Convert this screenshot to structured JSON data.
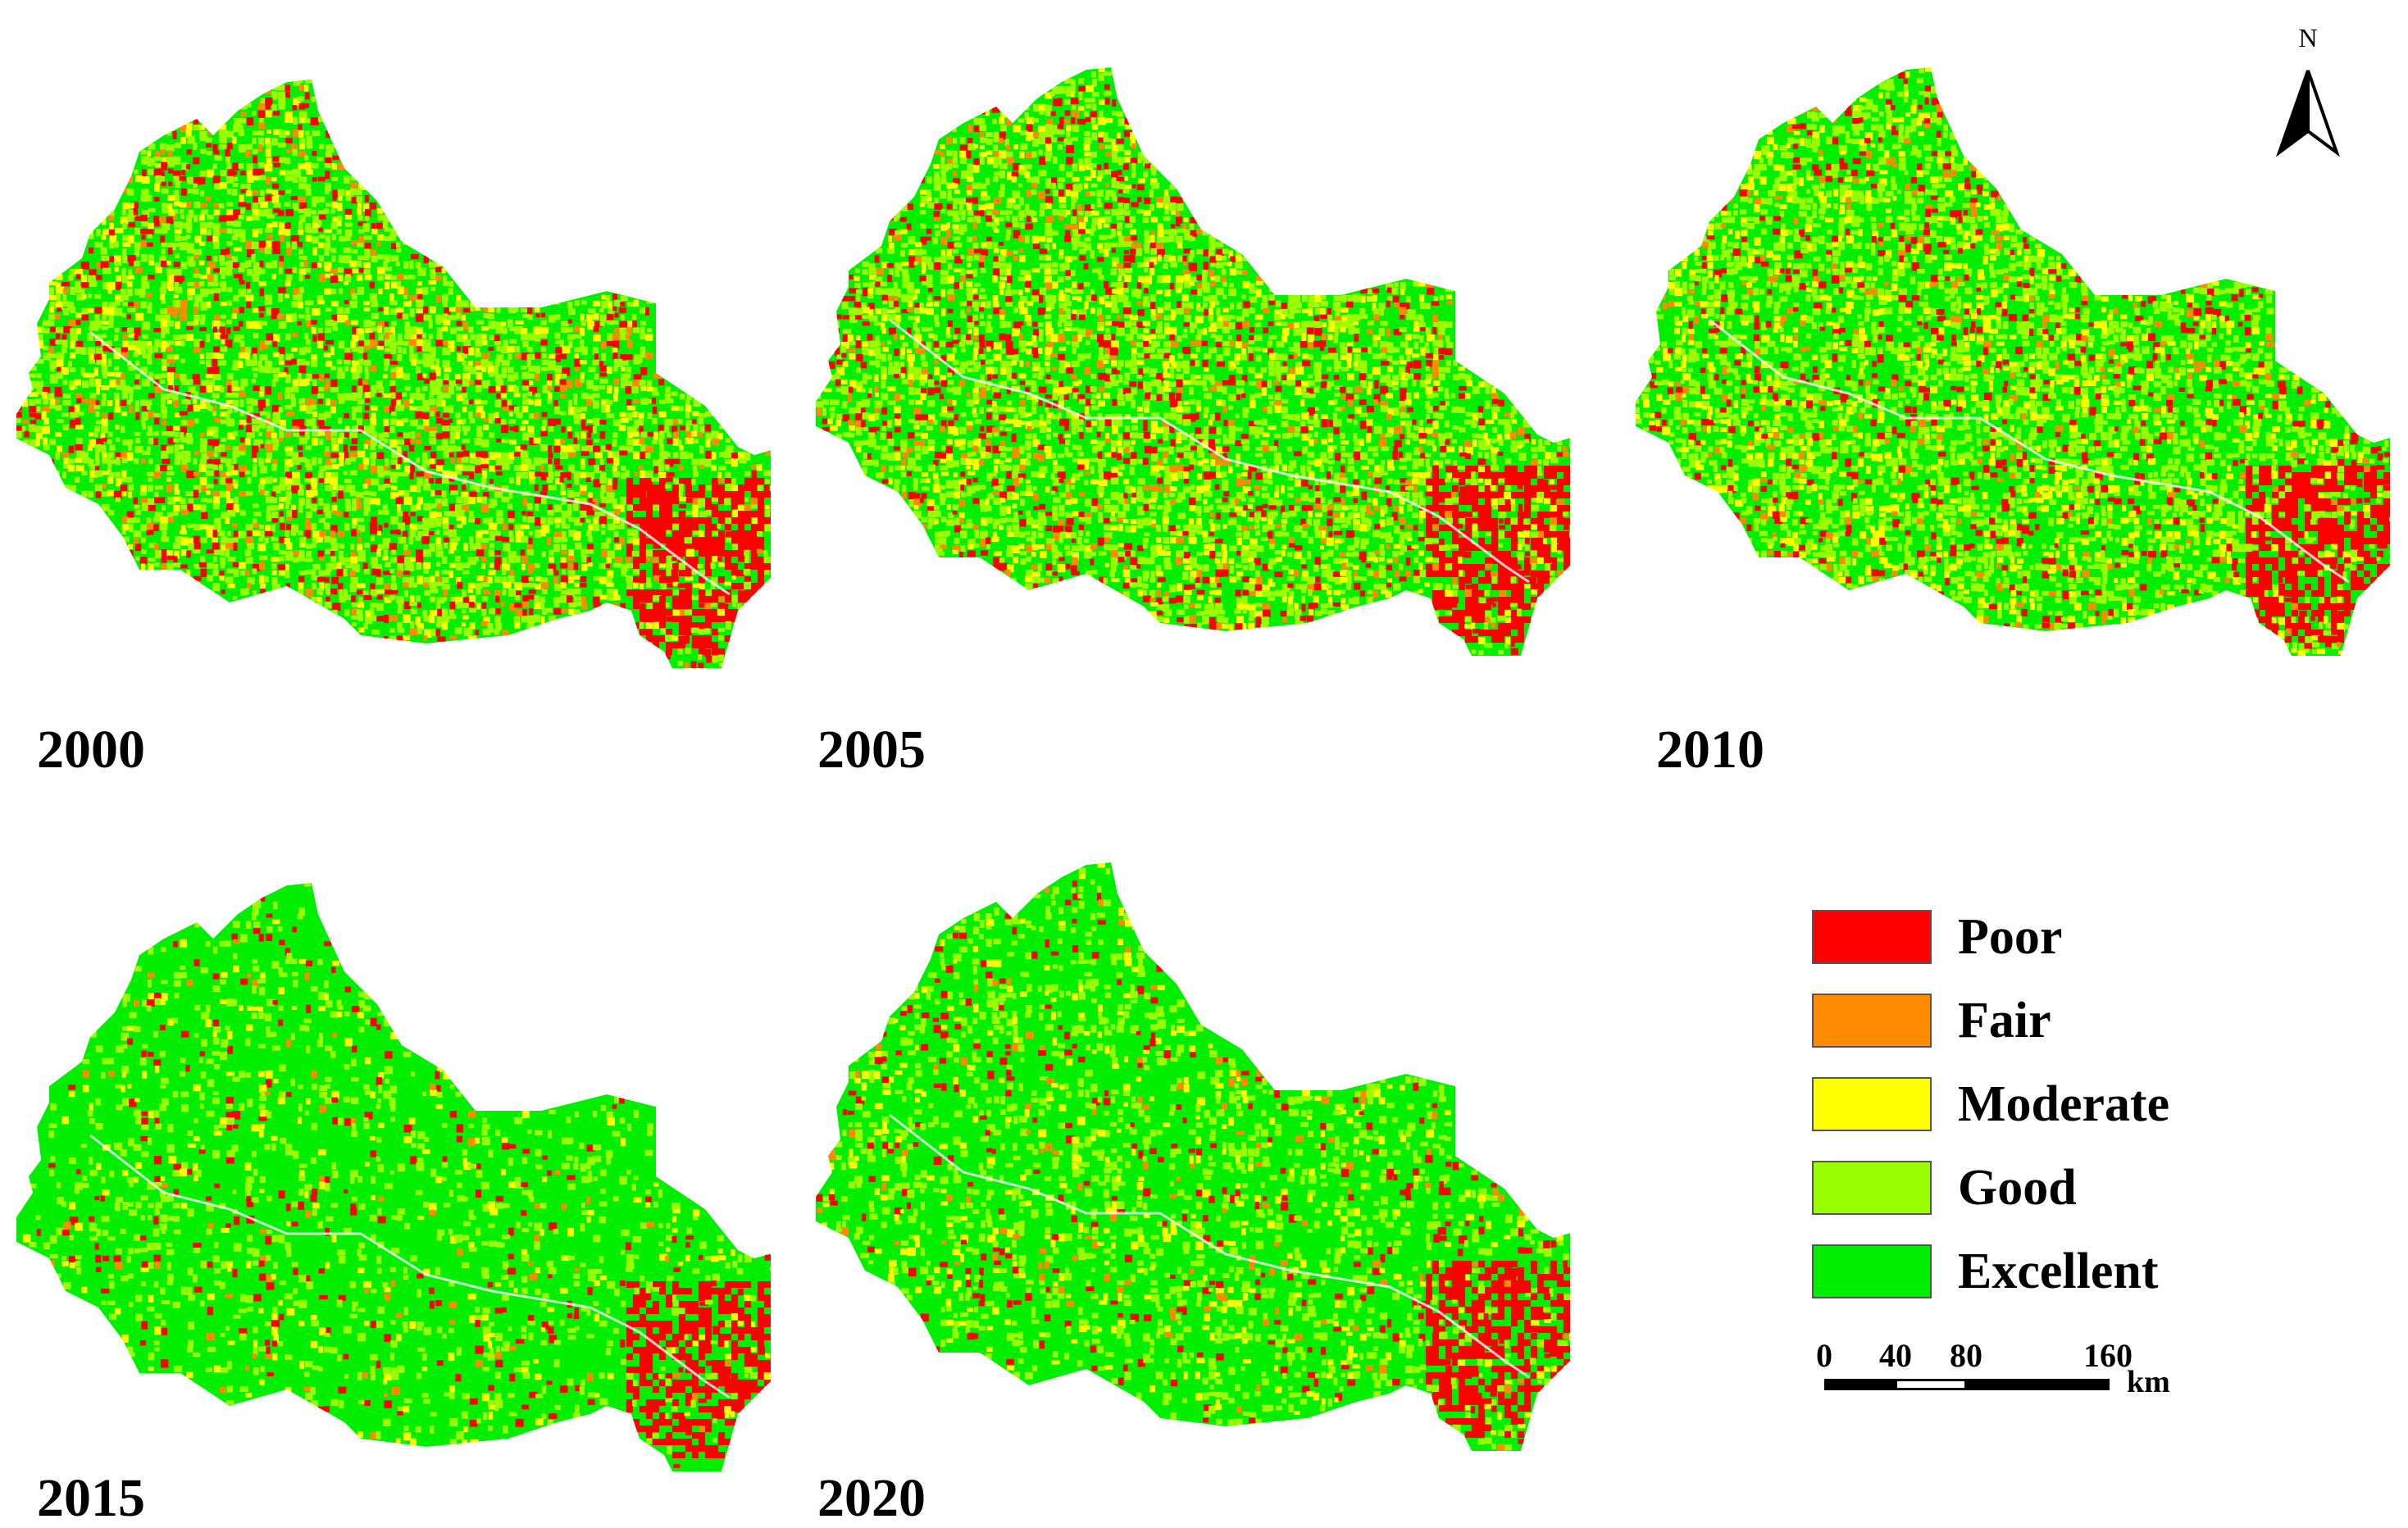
{
  "panels": [
    {
      "year": "2000",
      "mix": {
        "red": 0.13,
        "orange": 0.05,
        "yellow": 0.13,
        "lightgreen": 0.34,
        "green": 0.35
      },
      "coast_red": true
    },
    {
      "year": "2005",
      "mix": {
        "red": 0.12,
        "orange": 0.05,
        "yellow": 0.14,
        "lightgreen": 0.33,
        "green": 0.36
      },
      "coast_red": true
    },
    {
      "year": "2010",
      "mix": {
        "red": 0.1,
        "orange": 0.04,
        "yellow": 0.13,
        "lightgreen": 0.33,
        "green": 0.4
      },
      "coast_red": true
    },
    {
      "year": "2015",
      "mix": {
        "red": 0.04,
        "orange": 0.01,
        "yellow": 0.04,
        "lightgreen": 0.14,
        "green": 0.77
      },
      "coast_red": true
    },
    {
      "year": "2020",
      "mix": {
        "red": 0.05,
        "orange": 0.02,
        "yellow": 0.06,
        "lightgreen": 0.2,
        "green": 0.67
      },
      "coast_red": true
    }
  ],
  "legend": [
    {
      "label": "Poor",
      "color": "#ff0000"
    },
    {
      "label": "Fair",
      "color": "#ff8c00"
    },
    {
      "label": "Moderate",
      "color": "#ffff00"
    },
    {
      "label": "Good",
      "color": "#99ff00"
    },
    {
      "label": "Excellent",
      "color": "#00ee00"
    }
  ],
  "north_arrow": {
    "letter": "N"
  },
  "scale_bar": {
    "ticks": [
      "0",
      "40",
      "80",
      "160"
    ],
    "unit": "km"
  },
  "colors": {
    "red": "#ff0000",
    "orange": "#ff8c00",
    "yellow": "#ffff00",
    "lightgreen": "#99ff00",
    "green": "#00ee00",
    "river": "#ffffff"
  }
}
